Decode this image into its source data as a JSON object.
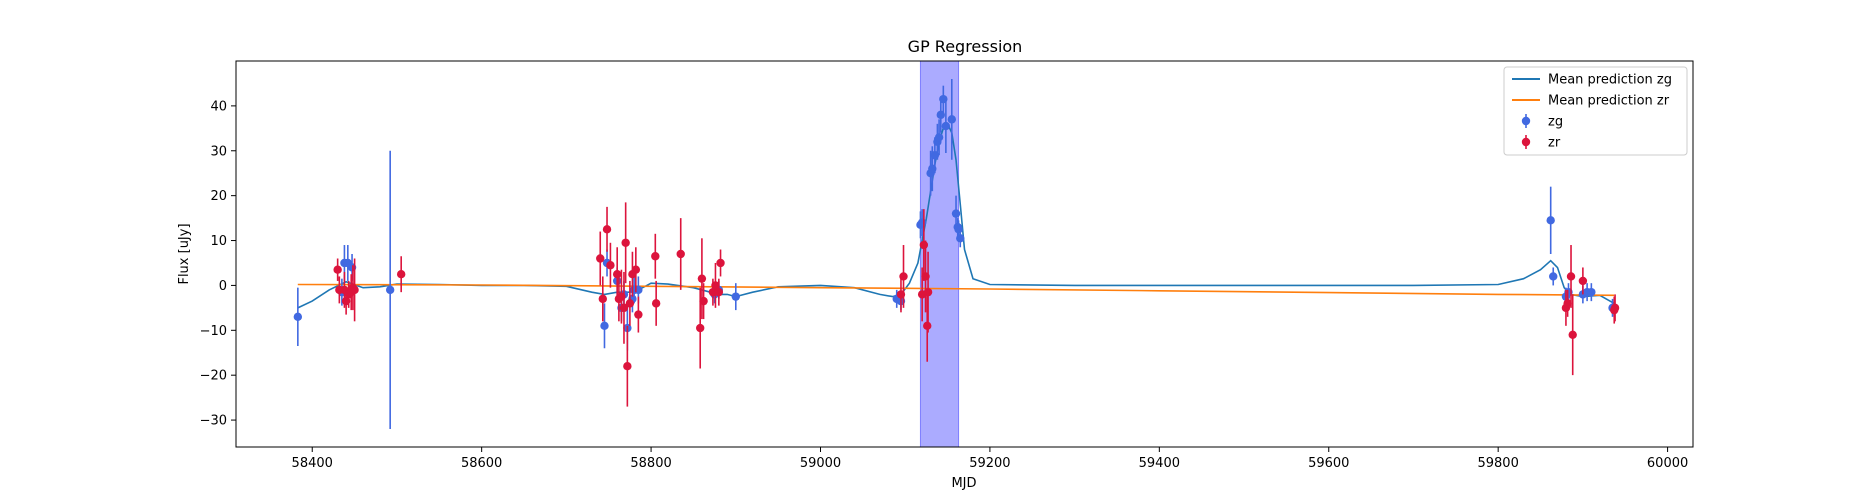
{
  "chart_data": {
    "type": "scatter",
    "title": "GP Regression",
    "xlabel": "MJD",
    "ylabel": "Flux [uJy]",
    "xlim": [
      58310,
      60030
    ],
    "ylim": [
      -36,
      50
    ],
    "xticks": [
      58400,
      58600,
      58800,
      59000,
      59200,
      59400,
      59600,
      59800,
      60000
    ],
    "yticks": [
      -30,
      -20,
      -10,
      0,
      10,
      20,
      30,
      40
    ],
    "grid": false,
    "legend_position": "top-right",
    "highlight_band": {
      "x0": 59118,
      "x1": 59163,
      "color": "#a6a6ff"
    },
    "legend": [
      {
        "label": "Mean prediction zg",
        "kind": "line",
        "color": "#1f77b4"
      },
      {
        "label": "Mean prediction zr",
        "kind": "line",
        "color": "#ff7f0e"
      },
      {
        "label": "zg",
        "kind": "errorpoint",
        "color": "#4169e1"
      },
      {
        "label": "zr",
        "kind": "errorpoint",
        "color": "#dc143c"
      }
    ],
    "series": [
      {
        "name": "Mean prediction zg",
        "kind": "line",
        "color": "#1f77b4",
        "x": [
          58383,
          58400,
          58420,
          58440,
          58460,
          58480,
          58500,
          58550,
          58600,
          58650,
          58700,
          58730,
          58745,
          58760,
          58775,
          58790,
          58800,
          58820,
          58850,
          58870,
          58880,
          58890,
          58900,
          58920,
          58950,
          59000,
          59040,
          59070,
          59085,
          59095,
          59105,
          59115,
          59125,
          59135,
          59140,
          59145,
          59150,
          59155,
          59160,
          59165,
          59170,
          59180,
          59200,
          59300,
          59500,
          59700,
          59800,
          59830,
          59850,
          59862,
          59870,
          59878,
          59885,
          59900,
          59920,
          59937
        ],
        "y": [
          -5,
          -3.5,
          -1,
          0.8,
          -0.5,
          -0.3,
          0.3,
          0.2,
          0,
          0,
          -0.2,
          -1.5,
          -2,
          -1.5,
          -1.5,
          -0.5,
          0.5,
          0.3,
          -0.5,
          -1.5,
          -2,
          -2,
          -2.5,
          -1.5,
          -0.3,
          0,
          -0.5,
          -2,
          -2.5,
          -2,
          0.5,
          5,
          15,
          27,
          32,
          35,
          36,
          34,
          28,
          18,
          8,
          1.5,
          0.2,
          0,
          0,
          0,
          0.2,
          1.5,
          3.5,
          5.5,
          4,
          -0.5,
          -2,
          -2.5,
          -2.2,
          -4
        ]
      },
      {
        "name": "Mean prediction zr",
        "kind": "line",
        "color": "#ff7f0e",
        "x": [
          58383,
          58600,
          58800,
          59000,
          59200,
          59400,
          59600,
          59800,
          59937
        ],
        "y": [
          0.2,
          0.1,
          -0.2,
          -0.5,
          -0.8,
          -1.2,
          -1.6,
          -2,
          -2.2
        ]
      },
      {
        "name": "zg",
        "kind": "errorpoint",
        "color": "#4169e1",
        "x": [
          58383,
          58435,
          58438,
          58442,
          58447,
          58492,
          58745,
          58748,
          58760,
          58765,
          58768,
          58772,
          58778,
          58780,
          58785,
          58875,
          58880,
          58900,
          59090,
          59095,
          59118,
          59120,
          59130,
          59132,
          59135,
          59138,
          59140,
          59142,
          59145,
          59148,
          59155,
          59160,
          59162,
          59163,
          59165,
          59862,
          59865,
          59880,
          59883,
          59900,
          59905,
          59910,
          59935
        ],
        "y": [
          -7,
          -1.5,
          5,
          5,
          4,
          -1,
          -9,
          5,
          1,
          -5,
          -2,
          -9.5,
          -3,
          -1,
          -1,
          -2,
          -1,
          -2.5,
          -3,
          -3.5,
          13.5,
          14,
          25,
          26,
          29,
          32,
          33,
          38,
          41.5,
          35.5,
          37,
          16,
          13,
          12.5,
          10.5,
          14.5,
          2,
          -2.5,
          -1.5,
          -2,
          -1.5,
          -1.5,
          -5
        ],
        "yerr": [
          6.5,
          3,
          4,
          4,
          3,
          31,
          5,
          3,
          3,
          3,
          3,
          5,
          3,
          3,
          3,
          2,
          2,
          3,
          2,
          2,
          3,
          3,
          5,
          5,
          4,
          4,
          4,
          4,
          3,
          6,
          9,
          4,
          2,
          2,
          2,
          7.5,
          2,
          2,
          2,
          2,
          2,
          2,
          2
        ]
      },
      {
        "name": "zr",
        "kind": "errorpoint",
        "color": "#dc143c",
        "x": [
          58430,
          58432,
          58438,
          58440,
          58443,
          58446,
          58448,
          58450,
          58505,
          58740,
          58743,
          58748,
          58752,
          58760,
          58762,
          58765,
          58768,
          58770,
          58772,
          58775,
          58778,
          58782,
          58785,
          58805,
          58806,
          58835,
          58858,
          58860,
          58862,
          58873,
          58876,
          58880,
          58882,
          59095,
          59098,
          59120,
          59122,
          59124,
          59126,
          59127,
          59880,
          59882,
          59886,
          59888,
          59900,
          59937,
          59938
        ],
        "y": [
          3.5,
          -1,
          -1,
          -3.5,
          -2,
          -1.5,
          -0.5,
          -1,
          2.5,
          6,
          -3,
          12.5,
          4.5,
          2.5,
          -3,
          -2.5,
          -5,
          9.5,
          -18,
          -4,
          2.5,
          3.5,
          -6.5,
          6.5,
          -4,
          7,
          -9.5,
          1.5,
          -3.5,
          -1.5,
          0,
          -1.5,
          5,
          -2,
          2,
          -2,
          9,
          2,
          -9,
          -1.5,
          -5,
          -4,
          2,
          -11,
          1,
          -5.5,
          -5
        ],
        "yerr": [
          2.5,
          3,
          4,
          3,
          3,
          4,
          5,
          7,
          4,
          6,
          5,
          5,
          5,
          6,
          5,
          6,
          8,
          9,
          9,
          5,
          5,
          5,
          4,
          5,
          5,
          8,
          9,
          9,
          4,
          3,
          5,
          3,
          3,
          4,
          7,
          6,
          8,
          8,
          8,
          9,
          4,
          3,
          7,
          9,
          3,
          3,
          3
        ]
      }
    ]
  }
}
